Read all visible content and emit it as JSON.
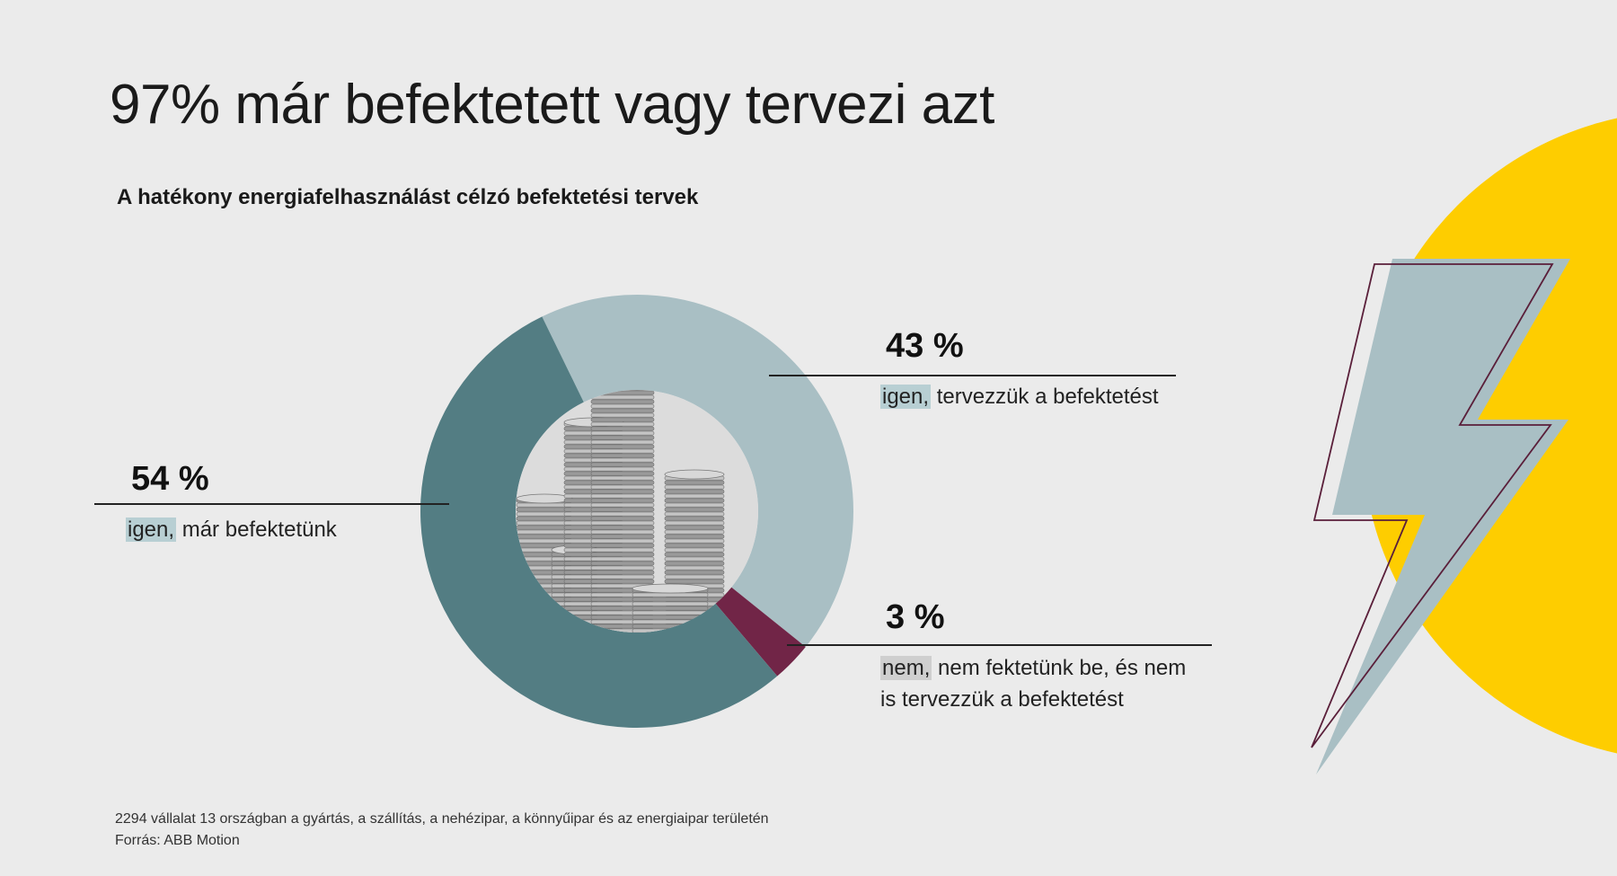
{
  "title": "97% már befektetett vagy tervezi azt",
  "subtitle": "A hatékony energiafelhasználást célzó befektetési tervek",
  "colors": {
    "background": "#ebebeb",
    "already_investing": "#537d83",
    "planning": "#a9bfc4",
    "not_planning": "#712547",
    "highlight_light": "#b8cfd3",
    "highlight_grey": "#cfcfcf",
    "sun": "#fecd00",
    "bolt": "#a9bfc4",
    "bolt_outline": "#5a1f3a"
  },
  "chart_data": {
    "type": "pie",
    "title": "A hatékony energiafelhasználást célzó befektetési tervek",
    "unit": "%",
    "slices": [
      {
        "value": 54,
        "value_label": "54 %",
        "highlight": "igen,",
        "label_rest": " már befektetünk",
        "color": "#537d83"
      },
      {
        "value": 43,
        "value_label": "43 %",
        "highlight": "igen,",
        "label_rest": " tervezzük a befektetést",
        "color": "#a9bfc4"
      },
      {
        "value": 3,
        "value_label": "3 %",
        "highlight": "nem,",
        "label_rest": " nem fektetünk be, és nem is tervezzük a befektetést",
        "color": "#712547"
      }
    ]
  },
  "footnote": {
    "line1": "2294 vállalat 13 országban a gyártás, a szállítás, a nehézipar, a könnyűipar és az energiaipar területén",
    "line2": "Forrás: ABB Motion"
  }
}
